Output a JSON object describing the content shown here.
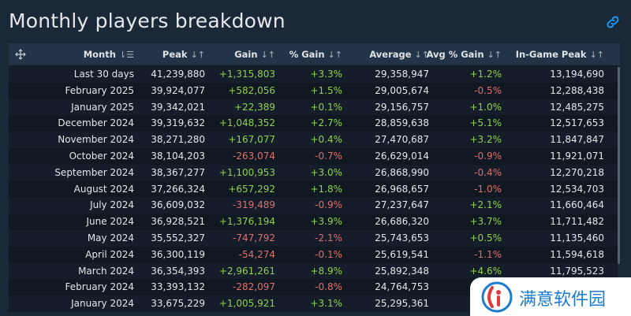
{
  "title": "Monthly players breakdown",
  "columns": [
    "Month",
    "Peak",
    "Gain",
    "% Gain",
    "Average",
    "Avg % Gain",
    "In-Game Peak"
  ],
  "rows": [
    {
      "month": "Last 30 days",
      "peak": "41,239,880",
      "gain": "+1,315,803",
      "pgain": "+3.3%",
      "avg": "29,358,947",
      "apgain": "+1.2%",
      "ingame": "13,194,690"
    },
    {
      "month": "February 2025",
      "peak": "39,924,077",
      "gain": "+582,056",
      "pgain": "+1.5%",
      "avg": "29,005,674",
      "apgain": "-0.5%",
      "ingame": "12,288,438"
    },
    {
      "month": "January 2025",
      "peak": "39,342,021",
      "gain": "+22,389",
      "pgain": "+0.1%",
      "avg": "29,156,757",
      "apgain": "+1.0%",
      "ingame": "12,485,275"
    },
    {
      "month": "December 2024",
      "peak": "39,319,632",
      "gain": "+1,048,352",
      "pgain": "+2.7%",
      "avg": "28,859,638",
      "apgain": "+5.1%",
      "ingame": "12,517,653"
    },
    {
      "month": "November 2024",
      "peak": "38,271,280",
      "gain": "+167,077",
      "pgain": "+0.4%",
      "avg": "27,470,687",
      "apgain": "+3.2%",
      "ingame": "11,847,847"
    },
    {
      "month": "October 2024",
      "peak": "38,104,203",
      "gain": "-263,074",
      "pgain": "-0.7%",
      "avg": "26,629,014",
      "apgain": "-0.9%",
      "ingame": "11,921,071"
    },
    {
      "month": "September 2024",
      "peak": "38,367,277",
      "gain": "+1,100,953",
      "pgain": "+3.0%",
      "avg": "26,868,990",
      "apgain": "-0.4%",
      "ingame": "12,270,218"
    },
    {
      "month": "August 2024",
      "peak": "37,266,324",
      "gain": "+657,292",
      "pgain": "+1.8%",
      "avg": "26,968,657",
      "apgain": "-1.0%",
      "ingame": "12,534,703"
    },
    {
      "month": "July 2024",
      "peak": "36,609,032",
      "gain": "-319,489",
      "pgain": "-0.9%",
      "avg": "27,237,647",
      "apgain": "+2.1%",
      "ingame": "11,660,464"
    },
    {
      "month": "June 2024",
      "peak": "36,928,521",
      "gain": "+1,376,194",
      "pgain": "+3.9%",
      "avg": "26,686,320",
      "apgain": "+3.7%",
      "ingame": "11,711,482"
    },
    {
      "month": "May 2024",
      "peak": "35,552,327",
      "gain": "-747,792",
      "pgain": "-2.1%",
      "avg": "25,743,653",
      "apgain": "+0.5%",
      "ingame": "11,135,460"
    },
    {
      "month": "April 2024",
      "peak": "36,300,119",
      "gain": "-54,274",
      "pgain": "-0.1%",
      "avg": "25,619,541",
      "apgain": "-1.1%",
      "ingame": "11,594,618"
    },
    {
      "month": "March 2024",
      "peak": "36,354,393",
      "gain": "+2,961,261",
      "pgain": "+8.9%",
      "avg": "25,892,348",
      "apgain": "+4.6%",
      "ingame": "11,795,523"
    },
    {
      "month": "February 2024",
      "peak": "33,393,132",
      "gain": "-282,097",
      "pgain": "-0.8%",
      "avg": "24,764,753",
      "apgain": "",
      "ingame": ""
    },
    {
      "month": "January 2024",
      "peak": "33,675,229",
      "gain": "+1,005,921",
      "pgain": "+3.1%",
      "avg": "25,295,361",
      "apgain": "",
      "ingame": ""
    }
  ],
  "colors": {
    "positive": "#8fd14f",
    "negative": "#e0706c",
    "link": "#1a9fff",
    "watermark_text": "#1a7bd1"
  },
  "icons": {
    "link": "link-icon",
    "resize": "move-icon",
    "sort_month": "sort-desc-icon",
    "sort": "sort-arrows-icon"
  },
  "watermark": {
    "text": "满意软件园"
  }
}
